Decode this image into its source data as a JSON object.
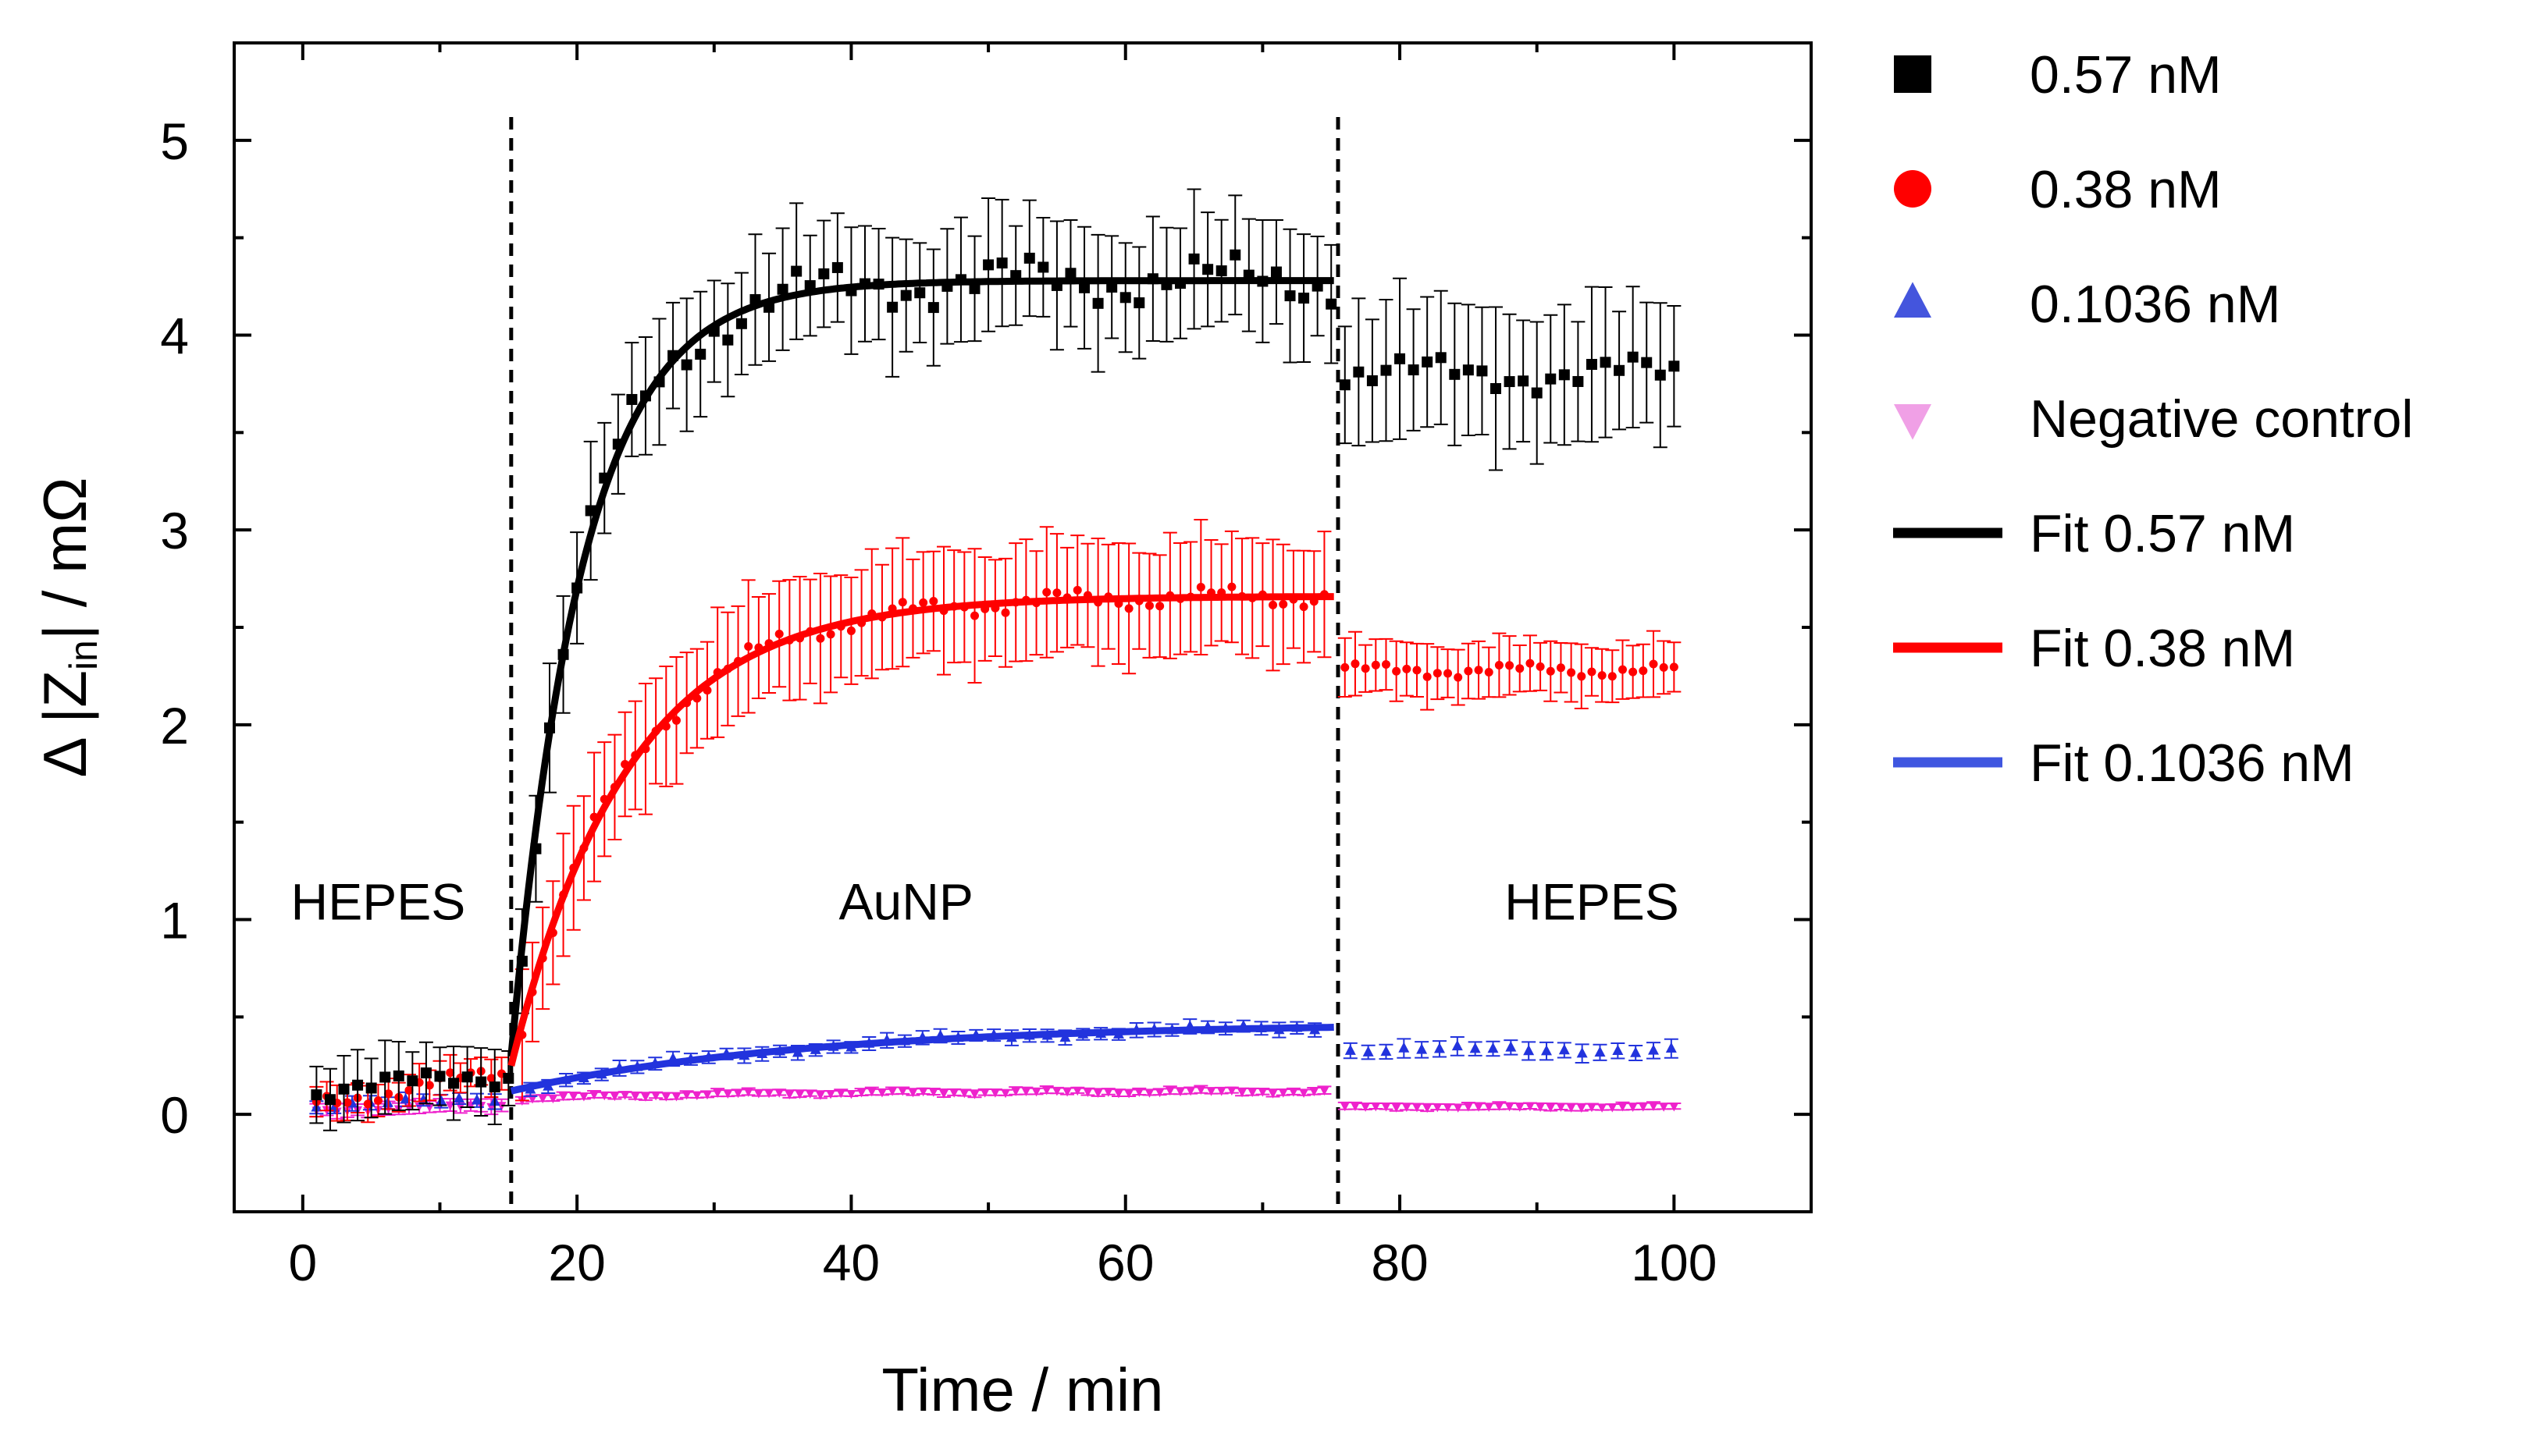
{
  "chart_data": {
    "type": "scatter",
    "xlabel": "Time / min",
    "ylabel": "Δ |Z_in| / mΩ",
    "ylabel_parts": {
      "prefix": "Δ |Z",
      "subscript": "in",
      "suffix": "| / mΩ"
    },
    "xlim": [
      -5,
      110
    ],
    "ylim": [
      -0.5,
      5.5
    ],
    "x_ticks": [
      0,
      20,
      40,
      60,
      80,
      100
    ],
    "x_tick_labels": [
      "0",
      "20",
      "40",
      "60",
      "80",
      "100"
    ],
    "y_ticks": [
      0,
      1,
      2,
      3,
      4,
      5
    ],
    "y_tick_labels": [
      "0",
      "1",
      "2",
      "3",
      "4",
      "5"
    ],
    "x_minor_ticks": [
      10,
      30,
      50,
      70,
      90
    ],
    "y_minor_ticks": [
      0.5,
      1.5,
      2.5,
      3.5,
      4.5
    ],
    "dividers_x": [
      15.2,
      75.5
    ],
    "regions": [
      {
        "label": "HEPES",
        "x": 5.5,
        "y": 1.0
      },
      {
        "label": "AuNP",
        "x": 44,
        "y": 1.0
      },
      {
        "label": "HEPES",
        "x": 94,
        "y": 1.0
      }
    ],
    "legend_position": "outside-right",
    "legend": [
      {
        "label": "0.57 nM",
        "kind": "square",
        "color": "#000000"
      },
      {
        "label": "0.38 nM",
        "kind": "circle",
        "color": "#ff0000"
      },
      {
        "label": "0.1036 nM",
        "kind": "triangle-up",
        "color": "#4455dd"
      },
      {
        "label": "Negative control",
        "kind": "triangle-down",
        "color": "#f0a0e6"
      },
      {
        "label": "Fit 0.57 nM",
        "kind": "line",
        "color": "#000000"
      },
      {
        "label": "Fit 0.38 nM",
        "kind": "line",
        "color": "#ff0000"
      },
      {
        "label": "Fit 0.1036 nM",
        "kind": "line",
        "color": "#3f56e0"
      }
    ],
    "series": [
      {
        "name": "0.57 nM",
        "marker": "square",
        "color": "#000000",
        "marker_size": 7,
        "start": 1,
        "step": 1,
        "stop": 100,
        "phases": [
          {
            "x0": 1,
            "x1": 15,
            "y": 0.12,
            "y_end": 0.2,
            "amp": 0.06,
            "err": 0.2
          },
          {
            "x0": 15.5,
            "x1": 75,
            "baseline": 0.3,
            "plateau": 4.28,
            "tau": 5.2,
            "t0": 15.2,
            "amp": 0.14,
            "err": 0.36
          },
          {
            "x0": 75.6,
            "x1": 100.5,
            "y": 3.8,
            "amp": 0.1,
            "err": 0.42
          }
        ]
      },
      {
        "name": "0.38 nM",
        "marker": "circle",
        "color": "#ff0000",
        "marker_size": 5.5,
        "start": 1,
        "step": 0.75,
        "stop": 100.5,
        "phases": [
          {
            "x0": 1,
            "x1": 15,
            "y": 0.05,
            "y_end": 0.22,
            "amp": 0.05,
            "err": 0.1
          },
          {
            "x0": 15.5,
            "x1": 75,
            "baseline": 0.25,
            "plateau": 2.66,
            "tau": 8.5,
            "t0": 15.2,
            "amp": 0.06,
            "err": 0.35
          },
          {
            "x0": 75.6,
            "x1": 100.5,
            "y": 2.28,
            "amp": 0.04,
            "err": 0.17
          }
        ]
      },
      {
        "name": "0.1036 nM",
        "marker": "triangle-up",
        "color": "#2233dd",
        "marker_size": 7,
        "start": 1,
        "step": 1.3,
        "stop": 100.5,
        "phases": [
          {
            "x0": 1,
            "x1": 15,
            "y": 0.04,
            "y_end": 0.08,
            "amp": 0.02,
            "err": 0.04
          },
          {
            "x0": 15.5,
            "x1": 75,
            "baseline": 0.12,
            "plateau": 0.47,
            "tau": 22,
            "t0": 15.2,
            "amp": 0.02,
            "err": 0.04
          },
          {
            "x0": 75.6,
            "x1": 100.5,
            "y": 0.33,
            "amp": 0.02,
            "err": 0.05
          }
        ]
      },
      {
        "name": "Negative control",
        "marker": "triangle-down",
        "color": "#ee22cc",
        "marker_size": 6,
        "start": 1,
        "step": 0.75,
        "stop": 100.5,
        "phases": [
          {
            "x0": 1,
            "x1": 15,
            "y": 0.02,
            "y_end": 0.05,
            "amp": 0.01,
            "err": 0.04
          },
          {
            "x0": 15.5,
            "x1": 75,
            "baseline": 0.08,
            "plateau": 0.12,
            "tau": 15,
            "t0": 15.2,
            "amp": 0.01,
            "err": 0.02
          },
          {
            "x0": 75.6,
            "x1": 100.5,
            "y": 0.04,
            "amp": 0.005,
            "err": 0.02
          }
        ]
      }
    ],
    "fits": [
      {
        "name": "Fit 0.57 nM",
        "color": "#000000",
        "x0": 15.2,
        "x1": 75.2,
        "baseline": 0.3,
        "plateau": 4.28,
        "tau": 5.2
      },
      {
        "name": "Fit 0.38 nM",
        "color": "#ff0000",
        "x0": 15.2,
        "x1": 75.2,
        "baseline": 0.25,
        "plateau": 2.66,
        "tau": 8.5
      },
      {
        "name": "Fit 0.1036 nM",
        "color": "#2233dd",
        "x0": 15.2,
        "x1": 75.2,
        "baseline": 0.12,
        "plateau": 0.47,
        "tau": 22
      }
    ]
  }
}
